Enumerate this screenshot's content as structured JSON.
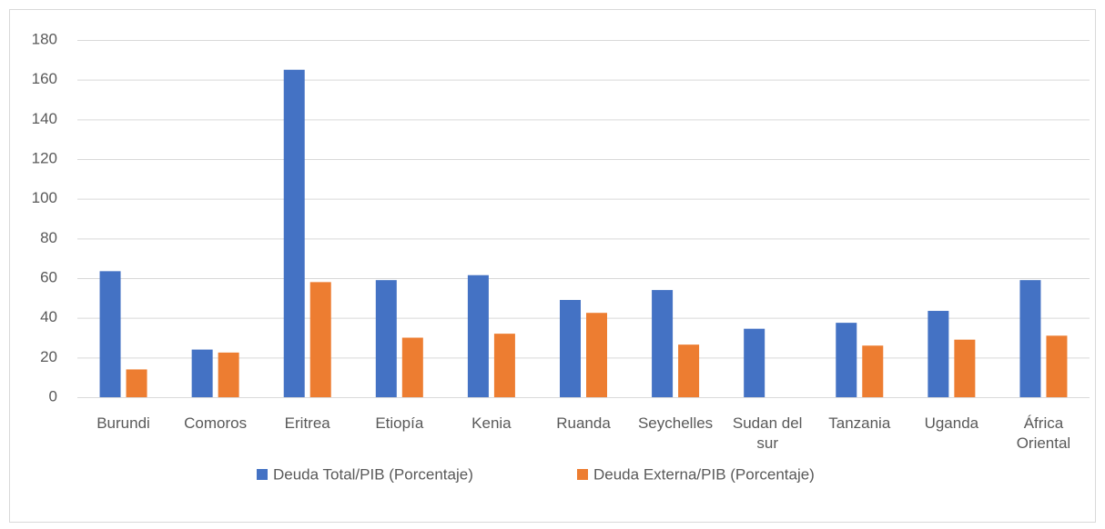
{
  "chart_data": {
    "type": "bar",
    "categories": [
      "Burundi",
      "Comoros",
      "Eritrea",
      "Etiopía",
      "Kenia",
      "Ruanda",
      "Seychelles",
      "Sudan del sur",
      "Tanzania",
      "Uganda",
      "África Oriental"
    ],
    "series": [
      {
        "name": "Deuda Total/PIB (Porcentaje)",
        "color": "#4472c4",
        "values": [
          63.5,
          24,
          165,
          59,
          61.5,
          49,
          54,
          34.5,
          37.5,
          43.5,
          59
        ]
      },
      {
        "name": "Deuda Externa/PIB (Porcentaje)",
        "color": "#ed7d31",
        "values": [
          14,
          22.5,
          58,
          30,
          32,
          42.5,
          26.5,
          null,
          26,
          29,
          31
        ]
      }
    ],
    "ylim": [
      0,
      180
    ],
    "yticks": [
      0,
      20,
      40,
      60,
      80,
      100,
      120,
      140,
      160,
      180
    ],
    "grid": true,
    "legend": "bottom"
  }
}
